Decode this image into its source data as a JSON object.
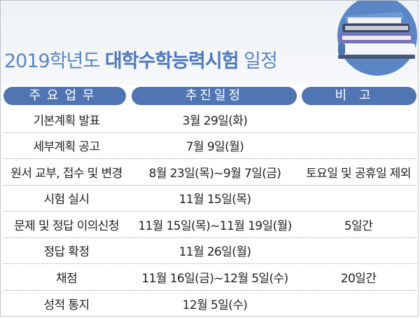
{
  "title": {
    "year": "2019",
    "middle": "학년도 ",
    "main": "대학수학능력시험",
    "suffix": " 일정"
  },
  "icon": "stacked-books-icon",
  "colors": {
    "header_pill": "#4f76b3",
    "title": "#4d77bd",
    "icon_circle": "#5a86c6"
  },
  "table": {
    "headers": [
      "주요업무",
      "추진일정",
      "비고"
    ],
    "rows": [
      {
        "task": "기본계획 발표",
        "schedule": "3월 29일(화)",
        "note": ""
      },
      {
        "task": "세부계획 공고",
        "schedule": "7월 9일(월)",
        "note": ""
      },
      {
        "task": "원서 교부, 접수 및 변경",
        "schedule": "8월 23일(목)~9월 7일(금)",
        "note": "토요일 및 공휴일 제외"
      },
      {
        "task": "시험 실시",
        "schedule": "11월 15일(목)",
        "note": ""
      },
      {
        "task": "문제 및 정답 이의신청",
        "schedule": "11월 15일(목)~11월 19일(월)",
        "note": "5일간"
      },
      {
        "task": "정답 확정",
        "schedule": "11월 26일(월)",
        "note": ""
      },
      {
        "task": "채점",
        "schedule": "11월 16일(금)~12월 5일(수)",
        "note": "20일간"
      },
      {
        "task": "성적 통지",
        "schedule": "12월 5일(수)",
        "note": ""
      }
    ]
  }
}
